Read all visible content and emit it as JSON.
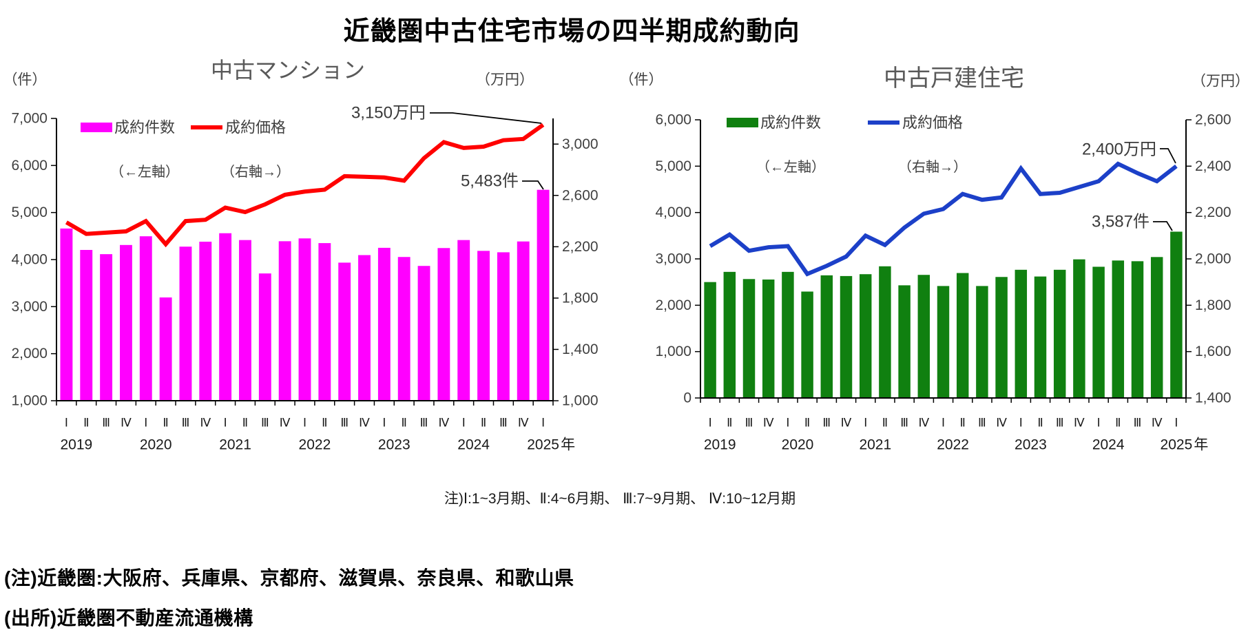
{
  "page_title": "近畿圏中古住宅市場の四半期成約動向",
  "note_quarters": "注)Ⅰ:1~3月期、Ⅱ:4~6月期、 Ⅲ:7~9月期、 Ⅳ:10~12月期",
  "footnotes": [
    "(注)近畿圏:大阪府、兵庫県、京都府、滋賀県、奈良県、和歌山県",
    "(出所)近畿圏不動産流通機構"
  ],
  "quarter_labels": [
    "Ⅰ",
    "Ⅱ",
    "Ⅲ",
    "Ⅳ"
  ],
  "years": [
    "2019",
    "2020",
    "2021",
    "2022",
    "2023",
    "2024",
    "2025"
  ],
  "year_suffix": "年",
  "chart_data": [
    {
      "type": "bar+line",
      "title": "中古マンション",
      "unit_left": "（件）",
      "unit_right": "（万円）",
      "legend": {
        "bars": "成約件数",
        "bars_sub": "（←左軸）",
        "line": "成約価格",
        "line_sub": "（右軸→）"
      },
      "bar_color": "#FF00FF",
      "line_color": "#FF0000",
      "left_axis": {
        "min": 1000,
        "max": 7000,
        "step": 1000
      },
      "right_axis": {
        "min": 1000,
        "max": 3200,
        "step": 400,
        "label_max": 3000
      },
      "tick_labels_left": [
        "7,000",
        "6,000",
        "5,000",
        "4,000",
        "3,000",
        "2,000",
        "1,000"
      ],
      "tick_labels_right": [
        "3,000",
        "2,600",
        "2,200",
        "1,800",
        "1,400",
        "1,000"
      ],
      "bars_values": [
        4660,
        4205,
        4115,
        4310,
        4495,
        3195,
        4275,
        4380,
        4560,
        4415,
        3705,
        4390,
        4450,
        4350,
        3935,
        4095,
        4250,
        4055,
        3865,
        4245,
        4415,
        4185,
        4155,
        4385,
        5483
      ],
      "line_values": [
        2390,
        2300,
        2310,
        2320,
        2400,
        2220,
        2400,
        2410,
        2505,
        2470,
        2530,
        2605,
        2630,
        2645,
        2750,
        2745,
        2740,
        2715,
        2890,
        3015,
        2970,
        2980,
        3030,
        3040,
        3150
      ],
      "callouts": [
        {
          "text": "3,150万円",
          "points_to": "line-end"
        },
        {
          "text": "5,483件",
          "points_to": "last-bar"
        }
      ]
    },
    {
      "type": "bar+line",
      "title": "中古戸建住宅",
      "unit_left": "（件）",
      "unit_right": "（万円）",
      "legend": {
        "bars": "成約件数",
        "bars_sub": "（←左軸）",
        "line": "成約価格",
        "line_sub": "（右軸→）"
      },
      "bar_color": "#108010",
      "line_color": "#1C40C8",
      "left_axis": {
        "min": 0,
        "max": 6000,
        "step": 1000
      },
      "right_axis": {
        "min": 1400,
        "max": 2600,
        "step": 200,
        "label_max": 2600
      },
      "tick_labels_left": [
        "6,000",
        "5,000",
        "4,000",
        "3,000",
        "2,000",
        "1,000",
        "0"
      ],
      "tick_labels_right": [
        "2,600",
        "2,400",
        "2,200",
        "2,000",
        "1,800",
        "1,600",
        "1,400"
      ],
      "bars_values": [
        2500,
        2720,
        2565,
        2555,
        2720,
        2295,
        2645,
        2630,
        2670,
        2840,
        2430,
        2655,
        2415,
        2695,
        2415,
        2610,
        2765,
        2620,
        2765,
        2990,
        2830,
        2965,
        2950,
        3040,
        3587
      ],
      "line_values": [
        2055,
        2105,
        2035,
        2050,
        2055,
        1935,
        1970,
        2010,
        2100,
        2060,
        2135,
        2195,
        2215,
        2280,
        2255,
        2265,
        2390,
        2280,
        2285,
        2310,
        2335,
        2410,
        2370,
        2335,
        2400
      ],
      "callouts": [
        {
          "text": "2,400万円",
          "points_to": "line-end"
        },
        {
          "text": "3,587件",
          "points_to": "last-bar"
        }
      ]
    }
  ],
  "colors": {
    "chart_title_gray": "#595959",
    "axis_text": "#404040",
    "axis_line": "#000000"
  }
}
